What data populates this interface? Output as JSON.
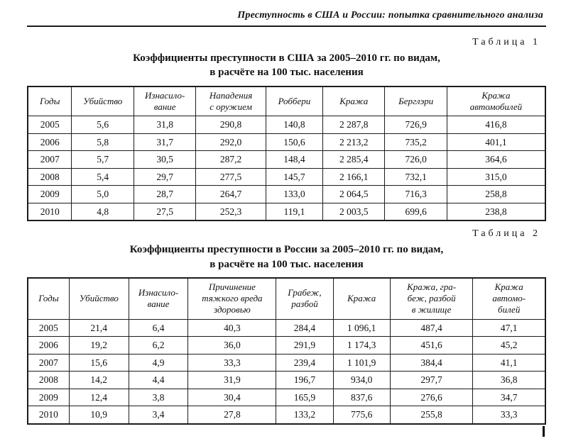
{
  "page": {
    "running_header": "Преступность в США и России: попытка сравнительного анализа"
  },
  "table1": {
    "label": "Таблица 1",
    "title": "Коэффициенты преступности в США за 2005–2010 гг. по видам,\nв расчёте на 100 тыс. населения",
    "headers": [
      "Годы",
      "Убийство",
      "Изнасило-\nвание",
      "Нападения\nс оружием",
      "Роббери",
      "Кража",
      "Берглэри",
      "Кража\nавтомобилей"
    ],
    "rows": [
      [
        "2005",
        "5,6",
        "31,8",
        "290,8",
        "140,8",
        "2 287,8",
        "726,9",
        "416,8"
      ],
      [
        "2006",
        "5,8",
        "31,7",
        "292,0",
        "150,6",
        "2 213,2",
        "735,2",
        "401,1"
      ],
      [
        "2007",
        "5,7",
        "30,5",
        "287,2",
        "148,4",
        "2 285,4",
        "726,0",
        "364,6"
      ],
      [
        "2008",
        "5,4",
        "29,7",
        "277,5",
        "145,7",
        "2 166,1",
        "732,1",
        "315,0"
      ],
      [
        "2009",
        "5,0",
        "28,7",
        "264,7",
        "133,0",
        "2 064,5",
        "716,3",
        "258,8"
      ],
      [
        "2010",
        "4,8",
        "27,5",
        "252,3",
        "119,1",
        "2 003,5",
        "699,6",
        "238,8"
      ]
    ]
  },
  "table2": {
    "label": "Таблица 2",
    "title": "Коэффициенты преступности в России за 2005–2010 гг. по видам,\nв расчёте на 100 тыс. населения",
    "headers": [
      "Годы",
      "Убийство",
      "Изнасило-\nвание",
      "Причинение\nтяжкого вреда\nздоровью",
      "Грабеж,\nразбой",
      "Кража",
      "Кража, гра-\nбеж, разбой\nв жилище",
      "Кража\nавтомо-\nбилей"
    ],
    "rows": [
      [
        "2005",
        "21,4",
        "6,4",
        "40,3",
        "284,4",
        "1 096,1",
        "487,4",
        "47,1"
      ],
      [
        "2006",
        "19,2",
        "6,2",
        "36,0",
        "291,9",
        "1 174,3",
        "451,6",
        "45,2"
      ],
      [
        "2007",
        "15,6",
        "4,9",
        "33,3",
        "239,4",
        "1 101,9",
        "384,4",
        "41,1"
      ],
      [
        "2008",
        "14,2",
        "4,4",
        "31,9",
        "196,7",
        "934,0",
        "297,7",
        "36,8"
      ],
      [
        "2009",
        "12,4",
        "3,8",
        "30,4",
        "165,9",
        "837,6",
        "276,6",
        "34,7"
      ],
      [
        "2010",
        "10,9",
        "3,4",
        "27,8",
        "133,2",
        "775,6",
        "255,8",
        "33,3"
      ]
    ]
  }
}
